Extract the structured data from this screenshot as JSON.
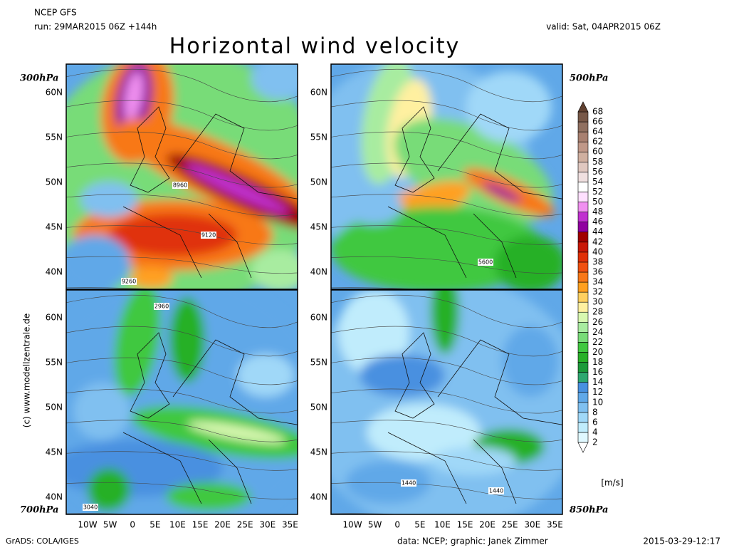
{
  "header": {
    "model": "NCEP GFS",
    "run": "run: 29MAR2015 06Z +144h",
    "valid": "valid: Sat, 04APR2015 06Z",
    "title": "Horizontal wind velocity"
  },
  "panels": [
    {
      "level": "300hPa",
      "contour_labels": [
        "8960",
        "9120",
        "9260"
      ]
    },
    {
      "level": "500hPa",
      "contour_labels": [
        "5600"
      ]
    },
    {
      "level": "700hPa",
      "contour_labels": [
        "2960",
        "3040"
      ]
    },
    {
      "level": "850hPa",
      "contour_labels": [
        "1440",
        "1440"
      ]
    }
  ],
  "latitude_labels": [
    "60N",
    "55N",
    "50N",
    "45N",
    "40N"
  ],
  "longitude_labels": [
    "10W",
    "5W",
    "0",
    "5E",
    "10E",
    "15E",
    "20E",
    "25E",
    "30E",
    "35E"
  ],
  "colorbar": {
    "levels": [
      2,
      4,
      6,
      8,
      10,
      12,
      14,
      16,
      18,
      20,
      22,
      24,
      26,
      28,
      30,
      32,
      34,
      36,
      38,
      40,
      42,
      44,
      46,
      48,
      50,
      52,
      54,
      56,
      58,
      60,
      62,
      64,
      66,
      68
    ],
    "colors": [
      "#ffffff",
      "#e0f8ff",
      "#c0ecfc",
      "#a0d8f8",
      "#80c0f0",
      "#60a8e8",
      "#4890e0",
      "#2ea870",
      "#1c9a3a",
      "#28b028",
      "#40c840",
      "#78dc78",
      "#a8eca0",
      "#d8f8b0",
      "#fff0a0",
      "#ffd060",
      "#ffa020",
      "#f87818",
      "#f05010",
      "#e03008",
      "#c81808",
      "#a00000",
      "#9000a0",
      "#c030d0",
      "#f090f0",
      "#ffe0ff",
      "#ffffff",
      "#f0e0e0",
      "#e0c8c0",
      "#d0b0a0",
      "#c09888",
      "#a88070",
      "#907060",
      "#785848",
      "#604030"
    ],
    "units": "[m/s]"
  },
  "copyright": "(c) www.modellzentrale.de",
  "footer": {
    "left": "GrADS: COLA/IGES",
    "center": "data: NCEP; graphic: Janek Zimmer",
    "right": "2015-03-29-12:17"
  }
}
